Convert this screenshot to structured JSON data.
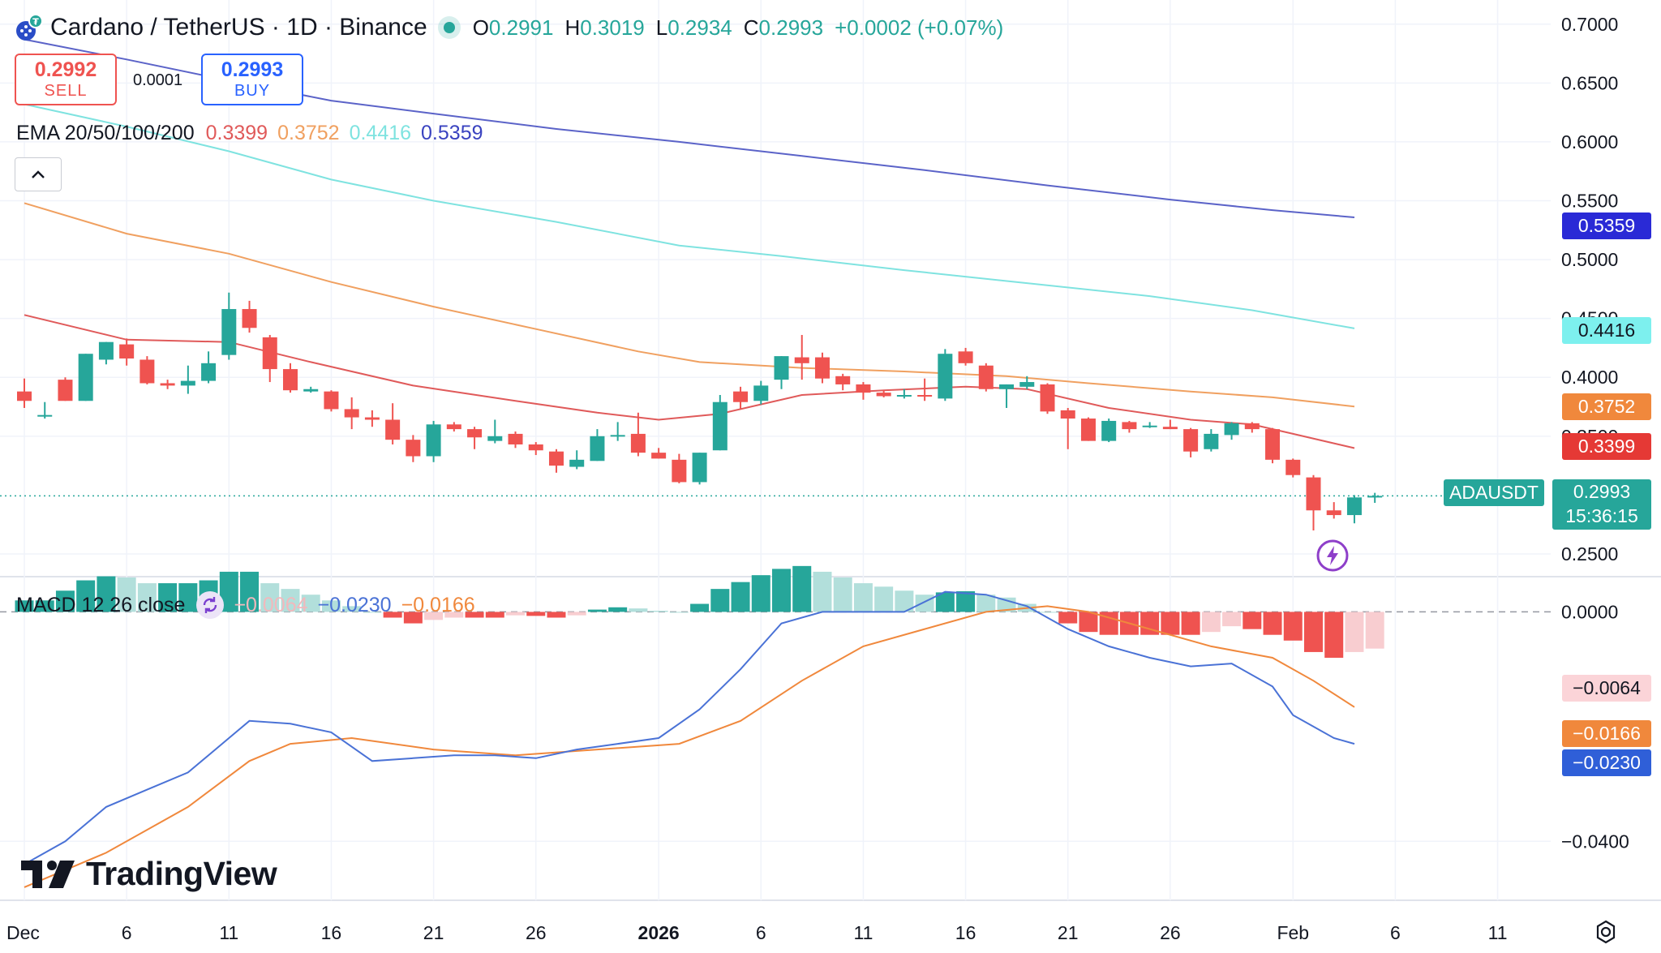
{
  "header": {
    "title": "Cardano / TetherUS · 1D · Binance",
    "ohlc": [
      {
        "k": "O",
        "v": "0.2991"
      },
      {
        "k": "H",
        "v": "0.3019"
      },
      {
        "k": "L",
        "v": "0.2934"
      },
      {
        "k": "C",
        "v": "0.2993"
      }
    ],
    "change": "+0.0002 (+0.07%)"
  },
  "trade": {
    "sell_price": "0.2992",
    "sell_label": "SELL",
    "spread": "0.0001",
    "buy_price": "0.2993",
    "buy_label": "BUY"
  },
  "ema_legend": {
    "name": "EMA 20/50/100/200",
    "values": [
      "0.3399",
      "0.3752",
      "0.4416",
      "0.5359"
    ]
  },
  "macd_legend": {
    "name": "MACD 12 26 close",
    "hist": "−0.0064",
    "macd": "−0.0230",
    "signal": "−0.0166"
  },
  "price_labels": {
    "ema200": "0.5359",
    "ema100": "0.4416",
    "ema50": "0.3752",
    "ema20": "0.3399",
    "symbol": "ADAUSDT",
    "last": "0.2993",
    "countdown": "15:36:15",
    "macd_hist": "−0.0064",
    "macd_signal": "−0.0166",
    "macd_line": "−0.0230"
  },
  "colors": {
    "up": "#26a69a",
    "down": "#ef5350",
    "ema20": "#e05a5a",
    "ema50": "#f0a060",
    "ema100": "#7fe3e0",
    "ema200": "#5b63c8",
    "macd": "#4a72d6",
    "signal": "#f0883c",
    "hist_up_strong": "#26a69a",
    "hist_up_weak": "#b2dfdb",
    "hist_down_strong": "#ef5350",
    "hist_down_weak": "#f8cdd0"
  },
  "branding": {
    "logo_text": "TradingView"
  },
  "chart_data": [
    {
      "type": "candlestick",
      "title": "Cardano / TetherUS · 1D · Binance",
      "symbol": "ADAUSDT",
      "ylim": [
        0.23,
        0.715
      ],
      "yticks": [
        "0.7000",
        "0.6500",
        "0.6000",
        "0.5500",
        "0.5000",
        "0.4500",
        "0.4000",
        "0.3500",
        "0.2500"
      ],
      "xticks": [
        {
          "day": 0,
          "label": "Dec"
        },
        {
          "day": 5,
          "label": "6"
        },
        {
          "day": 10,
          "label": "11"
        },
        {
          "day": 15,
          "label": "16"
        },
        {
          "day": 20,
          "label": "21"
        },
        {
          "day": 25,
          "label": "26"
        },
        {
          "day": 31,
          "label": "2026"
        },
        {
          "day": 36,
          "label": "6"
        },
        {
          "day": 41,
          "label": "11"
        },
        {
          "day": 46,
          "label": "16"
        },
        {
          "day": 51,
          "label": "21"
        },
        {
          "day": 56,
          "label": "26"
        },
        {
          "day": 62,
          "label": "Feb"
        },
        {
          "day": 67,
          "label": "6"
        },
        {
          "day": 72,
          "label": "11"
        }
      ],
      "ohlc": [
        [
          0.388,
          0.399,
          0.374,
          0.38
        ],
        [
          0.367,
          0.379,
          0.365,
          0.368
        ],
        [
          0.398,
          0.4,
          0.38,
          0.38
        ],
        [
          0.38,
          0.42,
          0.38,
          0.42
        ],
        [
          0.415,
          0.43,
          0.411,
          0.43
        ],
        [
          0.428,
          0.433,
          0.41,
          0.416
        ],
        [
          0.415,
          0.418,
          0.394,
          0.395
        ],
        [
          0.395,
          0.398,
          0.39,
          0.393
        ],
        [
          0.393,
          0.41,
          0.386,
          0.397
        ],
        [
          0.397,
          0.422,
          0.395,
          0.412
        ],
        [
          0.419,
          0.472,
          0.415,
          0.458
        ],
        [
          0.458,
          0.465,
          0.438,
          0.442
        ],
        [
          0.434,
          0.436,
          0.396,
          0.407
        ],
        [
          0.407,
          0.412,
          0.387,
          0.389
        ],
        [
          0.388,
          0.392,
          0.387,
          0.39
        ],
        [
          0.388,
          0.389,
          0.371,
          0.373
        ],
        [
          0.373,
          0.383,
          0.356,
          0.366
        ],
        [
          0.366,
          0.372,
          0.358,
          0.364
        ],
        [
          0.364,
          0.378,
          0.343,
          0.347
        ],
        [
          0.347,
          0.351,
          0.328,
          0.333
        ],
        [
          0.333,
          0.363,
          0.328,
          0.36
        ],
        [
          0.36,
          0.362,
          0.354,
          0.356
        ],
        [
          0.356,
          0.358,
          0.339,
          0.349
        ],
        [
          0.346,
          0.364,
          0.344,
          0.35
        ],
        [
          0.352,
          0.354,
          0.34,
          0.343
        ],
        [
          0.343,
          0.345,
          0.334,
          0.338
        ],
        [
          0.337,
          0.339,
          0.319,
          0.325
        ],
        [
          0.324,
          0.338,
          0.322,
          0.33
        ],
        [
          0.329,
          0.356,
          0.329,
          0.35
        ],
        [
          0.351,
          0.362,
          0.346,
          0.351
        ],
        [
          0.352,
          0.37,
          0.333,
          0.336
        ],
        [
          0.336,
          0.34,
          0.331,
          0.331
        ],
        [
          0.33,
          0.335,
          0.31,
          0.311
        ],
        [
          0.311,
          0.336,
          0.309,
          0.336
        ],
        [
          0.338,
          0.385,
          0.338,
          0.379
        ],
        [
          0.388,
          0.392,
          0.373,
          0.379
        ],
        [
          0.38,
          0.397,
          0.377,
          0.393
        ],
        [
          0.398,
          0.418,
          0.39,
          0.418
        ],
        [
          0.417,
          0.436,
          0.398,
          0.412
        ],
        [
          0.417,
          0.421,
          0.395,
          0.399
        ],
        [
          0.401,
          0.403,
          0.389,
          0.394
        ],
        [
          0.394,
          0.396,
          0.381,
          0.387
        ],
        [
          0.387,
          0.389,
          0.383,
          0.384
        ],
        [
          0.384,
          0.39,
          0.382,
          0.385
        ],
        [
          0.385,
          0.399,
          0.38,
          0.384
        ],
        [
          0.382,
          0.424,
          0.38,
          0.42
        ],
        [
          0.422,
          0.425,
          0.41,
          0.412
        ],
        [
          0.41,
          0.412,
          0.388,
          0.39
        ],
        [
          0.39,
          0.394,
          0.374,
          0.394
        ],
        [
          0.392,
          0.401,
          0.39,
          0.396
        ],
        [
          0.394,
          0.395,
          0.369,
          0.371
        ],
        [
          0.372,
          0.374,
          0.339,
          0.365
        ],
        [
          0.365,
          0.366,
          0.346,
          0.346
        ],
        [
          0.346,
          0.365,
          0.345,
          0.363
        ],
        [
          0.362,
          0.363,
          0.353,
          0.356
        ],
        [
          0.359,
          0.362,
          0.357,
          0.359
        ],
        [
          0.358,
          0.364,
          0.356,
          0.356
        ],
        [
          0.356,
          0.357,
          0.332,
          0.337
        ],
        [
          0.339,
          0.356,
          0.337,
          0.352
        ],
        [
          0.351,
          0.362,
          0.347,
          0.361
        ],
        [
          0.361,
          0.362,
          0.353,
          0.356
        ],
        [
          0.356,
          0.357,
          0.327,
          0.33
        ],
        [
          0.33,
          0.331,
          0.315,
          0.317
        ],
        [
          0.315,
          0.317,
          0.27,
          0.287
        ],
        [
          0.287,
          0.294,
          0.28,
          0.283
        ],
        [
          0.283,
          0.3,
          0.276,
          0.298
        ],
        [
          0.2991,
          0.3019,
          0.2934,
          0.2993
        ]
      ],
      "ema": [
        {
          "name": "EMA 20",
          "color": "#e05a5a",
          "last": "0.3399",
          "points": [
            [
              0,
              0.453
            ],
            [
              5,
              0.432
            ],
            [
              10,
              0.43
            ],
            [
              14,
              0.413
            ],
            [
              19,
              0.393
            ],
            [
              24,
              0.38
            ],
            [
              28,
              0.37
            ],
            [
              31,
              0.364
            ],
            [
              34,
              0.369
            ],
            [
              38,
              0.385
            ],
            [
              42,
              0.389
            ],
            [
              46,
              0.392
            ],
            [
              49,
              0.39
            ],
            [
              53,
              0.374
            ],
            [
              57,
              0.364
            ],
            [
              60,
              0.36
            ],
            [
              62,
              0.352
            ],
            [
              65,
              0.3399
            ]
          ]
        },
        {
          "name": "EMA 50",
          "color": "#f0a060",
          "last": "0.3752",
          "points": [
            [
              0,
              0.548
            ],
            [
              5,
              0.522
            ],
            [
              10,
              0.505
            ],
            [
              15,
              0.481
            ],
            [
              20,
              0.46
            ],
            [
              25,
              0.441
            ],
            [
              30,
              0.422
            ],
            [
              33,
              0.413
            ],
            [
              38,
              0.408
            ],
            [
              43,
              0.405
            ],
            [
              48,
              0.401
            ],
            [
              52,
              0.395
            ],
            [
              57,
              0.388
            ],
            [
              61,
              0.383
            ],
            [
              65,
              0.3752
            ]
          ]
        },
        {
          "name": "EMA 100",
          "color": "#7fe3e0",
          "last": "0.4416",
          "points": [
            [
              0,
              0.632
            ],
            [
              5,
              0.613
            ],
            [
              10,
              0.592
            ],
            [
              15,
              0.568
            ],
            [
              20,
              0.55
            ],
            [
              26,
              0.532
            ],
            [
              32,
              0.512
            ],
            [
              37,
              0.503
            ],
            [
              43,
              0.491
            ],
            [
              49,
              0.48
            ],
            [
              55,
              0.469
            ],
            [
              60,
              0.457
            ],
            [
              65,
              0.4416
            ]
          ]
        },
        {
          "name": "EMA 200",
          "color": "#5b63c8",
          "last": "0.5359",
          "points": [
            [
              0,
              0.687
            ],
            [
              5,
              0.67
            ],
            [
              10,
              0.652
            ],
            [
              15,
              0.635
            ],
            [
              20,
              0.624
            ],
            [
              26,
              0.611
            ],
            [
              32,
              0.6
            ],
            [
              38,
              0.588
            ],
            [
              44,
              0.576
            ],
            [
              50,
              0.563
            ],
            [
              56,
              0.551
            ],
            [
              61,
              0.542
            ],
            [
              65,
              0.5359
            ]
          ]
        }
      ],
      "last_price": 0.2993,
      "countdown": "15:36:15"
    },
    {
      "type": "bar+line",
      "title": "MACD 12 26 close",
      "ylim": [
        -0.05,
        0.006
      ],
      "yticks": [
        "0.0000",
        "−0.0400"
      ],
      "histogram": [
        0.002,
        0.002,
        0.0037,
        0.0055,
        0.0062,
        0.006,
        0.005,
        0.005,
        0.005,
        0.0055,
        0.007,
        0.007,
        0.005,
        0.004,
        0.003,
        0.002,
        0.001,
        0.0,
        -0.001,
        -0.002,
        -0.0014,
        -0.001,
        -0.001,
        -0.001,
        -0.0006,
        -0.0007,
        -0.001,
        -0.0006,
        0.0004,
        0.0008,
        0.0006,
        0.0002,
        0.0,
        0.0014,
        0.004,
        0.0052,
        0.0064,
        0.0075,
        0.008,
        0.007,
        0.006,
        0.005,
        0.0044,
        0.0037,
        0.003,
        0.0034,
        0.0036,
        0.003,
        0.0025,
        0.0014,
        0.0,
        -0.002,
        -0.0035,
        -0.004,
        -0.004,
        -0.004,
        -0.004,
        -0.004,
        -0.0035,
        -0.0025,
        -0.003,
        -0.004,
        -0.005,
        -0.007,
        -0.008,
        -0.007,
        -0.0064
      ],
      "macd_line": [
        [
          0,
          -0.044
        ],
        [
          2,
          -0.04
        ],
        [
          4,
          -0.034
        ],
        [
          6,
          -0.031
        ],
        [
          8,
          -0.028
        ],
        [
          10,
          -0.022
        ],
        [
          11,
          -0.019
        ],
        [
          13,
          -0.0195
        ],
        [
          15,
          -0.021
        ],
        [
          17,
          -0.026
        ],
        [
          19,
          -0.0255
        ],
        [
          21,
          -0.025
        ],
        [
          23,
          -0.025
        ],
        [
          25,
          -0.0255
        ],
        [
          27,
          -0.024
        ],
        [
          29,
          -0.023
        ],
        [
          31,
          -0.022
        ],
        [
          33,
          -0.017
        ],
        [
          35,
          -0.01
        ],
        [
          37,
          -0.002
        ],
        [
          39,
          0.0
        ],
        [
          41,
          0.0
        ],
        [
          43,
          0.0
        ],
        [
          45,
          0.0035
        ],
        [
          47,
          0.003
        ],
        [
          49,
          0.001
        ],
        [
          51,
          -0.003
        ],
        [
          53,
          -0.006
        ],
        [
          55,
          -0.008
        ],
        [
          57,
          -0.0095
        ],
        [
          59,
          -0.009
        ],
        [
          61,
          -0.013
        ],
        [
          62,
          -0.018
        ],
        [
          64,
          -0.022
        ],
        [
          65,
          -0.023
        ]
      ],
      "signal_line": [
        [
          0,
          -0.048
        ],
        [
          4,
          -0.042
        ],
        [
          8,
          -0.034
        ],
        [
          11,
          -0.026
        ],
        [
          13,
          -0.023
        ],
        [
          16,
          -0.022
        ],
        [
          20,
          -0.024
        ],
        [
          24,
          -0.025
        ],
        [
          28,
          -0.024
        ],
        [
          32,
          -0.023
        ],
        [
          35,
          -0.019
        ],
        [
          38,
          -0.012
        ],
        [
          41,
          -0.006
        ],
        [
          44,
          -0.003
        ],
        [
          47,
          0.0
        ],
        [
          50,
          0.001
        ],
        [
          52,
          0.0
        ],
        [
          55,
          -0.003
        ],
        [
          58,
          -0.006
        ],
        [
          61,
          -0.008
        ],
        [
          63,
          -0.012
        ],
        [
          65,
          -0.0166
        ]
      ]
    }
  ]
}
